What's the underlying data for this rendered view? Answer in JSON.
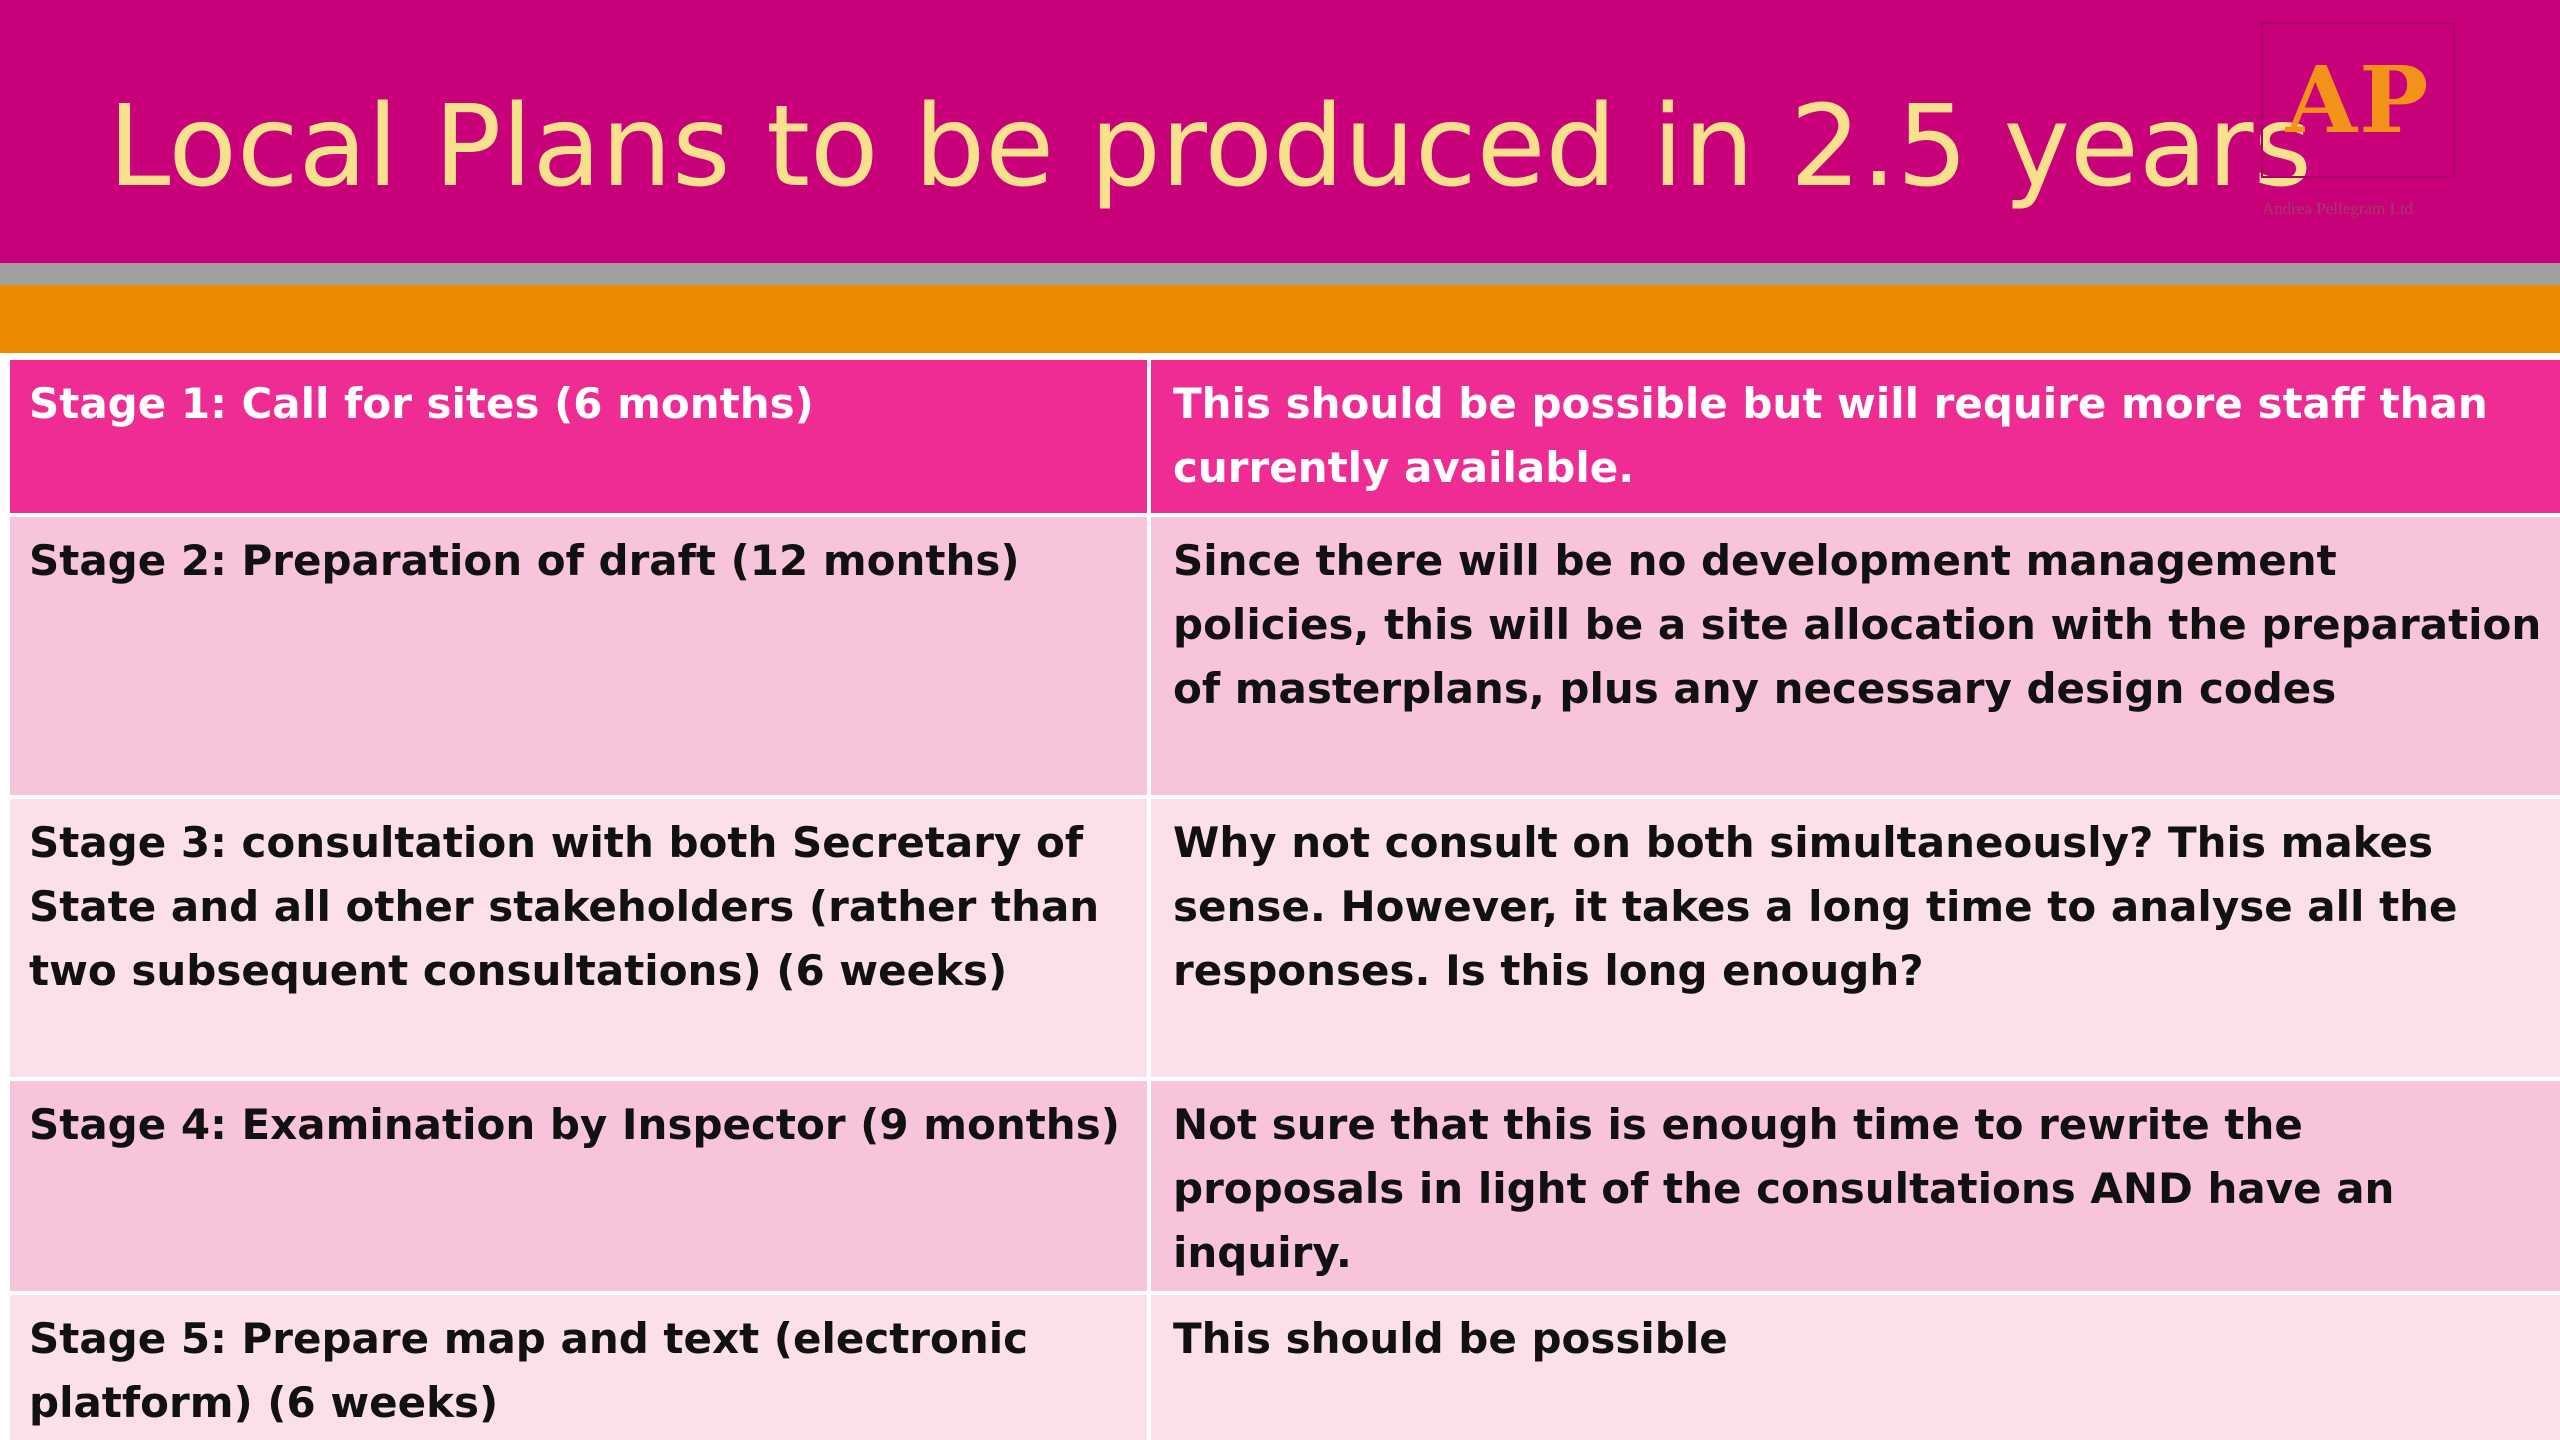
{
  "slide": {
    "title": "Local Plans to be produced in 2.5 years",
    "colors": {
      "header_bg": "#c8007a",
      "title_text": "#f8e08c",
      "grey_band": "#a0a0a0",
      "orange_band": "#ec8a00",
      "table_header_row": "#ee2c93",
      "table_row_dark": "#f8c4dc",
      "table_row_light": "#fbdfeb"
    }
  },
  "logo": {
    "initials": "AP",
    "caption": "Andrea Pellegram Ltd"
  },
  "table": {
    "rows": [
      {
        "stage": "Stage 1:  Call for sites (6 months)",
        "comment": "This should be possible but will require more staff than currently available."
      },
      {
        "stage": "Stage 2:  Preparation of draft (12 months)",
        "comment": "Since there will be no development management policies, this will be a site allocation with the preparation of masterplans, plus any necessary design codes"
      },
      {
        "stage": "Stage 3:  consultation with both Secretary of State and all other stakeholders (rather than two subsequent consultations) (6 weeks)",
        "comment": "Why not consult on both simultaneously?  This makes sense.  However, it takes a long time to analyse all the responses.  Is this long enough?"
      },
      {
        "stage": "Stage 4: Examination by Inspector (9 months)",
        "comment": "Not sure that this is enough time to rewrite the proposals in light of the consultations AND have an inquiry."
      },
      {
        "stage": "Stage 5:  Prepare map and text (electronic platform) (6 weeks)",
        "comment": "This should be possible"
      }
    ]
  }
}
